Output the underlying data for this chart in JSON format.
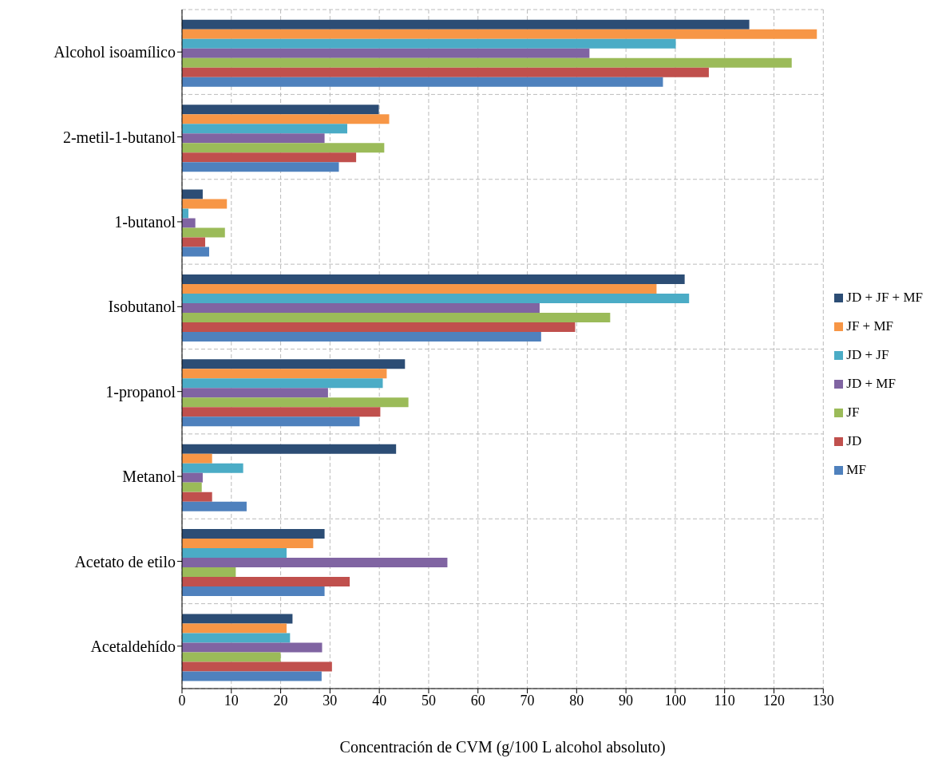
{
  "chart_data": {
    "type": "bar",
    "orientation": "horizontal",
    "xlabel": "Concentración de CVM  (g/100 L alcohol absoluto)",
    "categories": [
      "Alcohol isoamílico",
      "2-metil-1-butanol",
      "1-butanol",
      "Isobutanol",
      "1-propanol",
      "Metanol",
      "Acetato de etilo",
      "Acetaldehído"
    ],
    "series": [
      {
        "name": "JD + JF + MF",
        "color": "#2c4d75",
        "values": [
          115.0,
          39.9,
          4.2,
          101.9,
          45.2,
          43.4,
          28.9,
          22.4
        ]
      },
      {
        "name": "JF + MF",
        "color": "#f79646",
        "values": [
          128.7,
          42.0,
          9.1,
          96.2,
          41.5,
          6.1,
          26.6,
          21.2
        ]
      },
      {
        "name": "JD + JF",
        "color": "#4bacc6",
        "values": [
          100.1,
          33.5,
          1.3,
          102.8,
          40.7,
          12.4,
          21.2,
          21.9
        ]
      },
      {
        "name": "JD + MF",
        "color": "#8064a2",
        "values": [
          82.6,
          28.9,
          2.7,
          72.5,
          29.6,
          4.2,
          53.8,
          28.4
        ]
      },
      {
        "name": "JF",
        "color": "#9bbb59",
        "values": [
          123.6,
          41.0,
          8.7,
          86.8,
          45.9,
          4.0,
          10.9,
          20.0
        ]
      },
      {
        "name": "JD",
        "color": "#c0504d",
        "values": [
          106.8,
          35.3,
          4.7,
          79.7,
          40.2,
          6.1,
          34.0,
          30.4
        ]
      },
      {
        "name": "MF",
        "color": "#4f81bd",
        "values": [
          97.5,
          31.8,
          5.5,
          72.8,
          36.0,
          13.1,
          28.9,
          28.3
        ]
      }
    ],
    "xlim": [
      0,
      130
    ],
    "xticks": [
      0,
      10,
      20,
      30,
      40,
      50,
      60,
      70,
      80,
      90,
      100,
      110,
      120,
      130
    ],
    "grid": true,
    "legend": "right"
  }
}
